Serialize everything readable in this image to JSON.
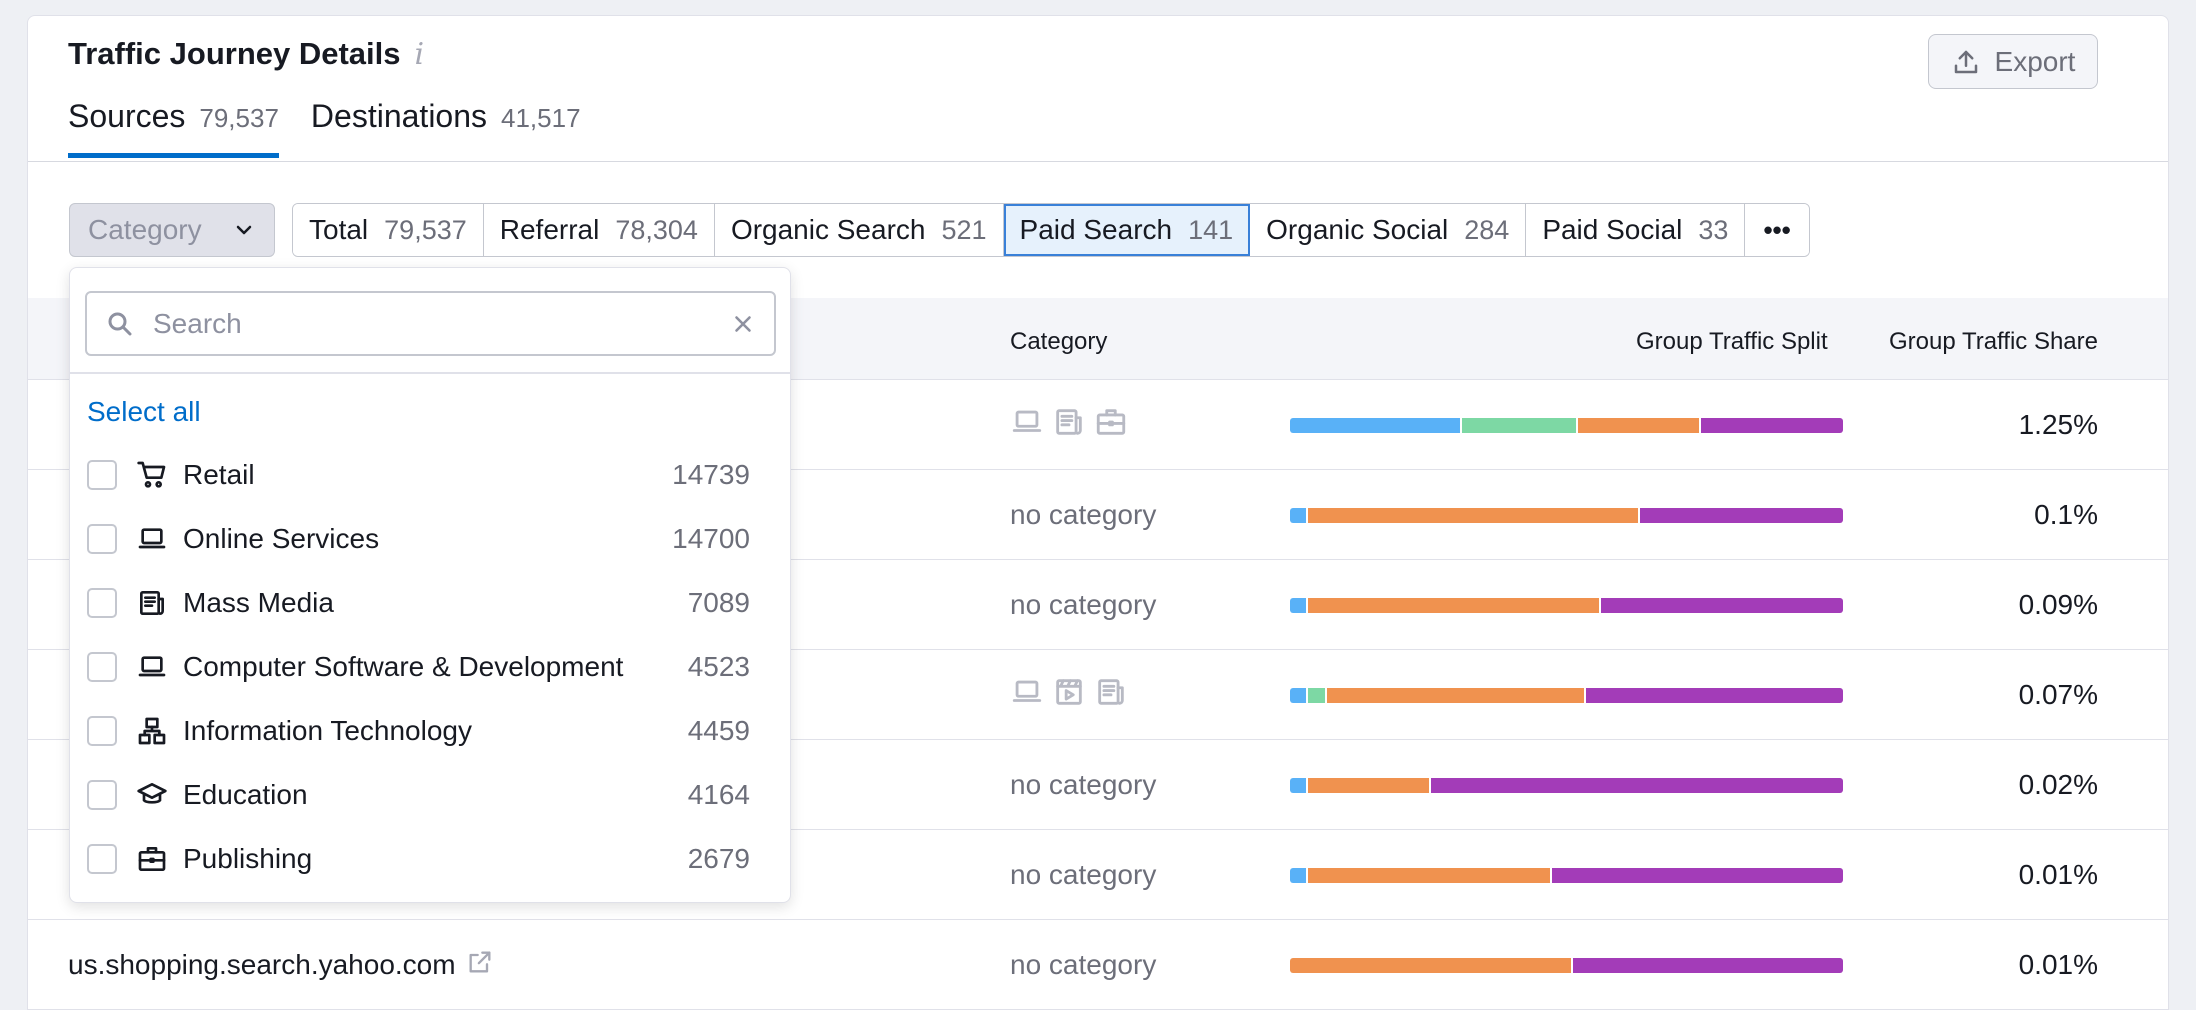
{
  "header": {
    "title": "Traffic Journey Details",
    "info_icon": "info-icon",
    "export_label": "Export"
  },
  "tabs": [
    {
      "label": "Sources",
      "count": "79,537",
      "active": true
    },
    {
      "label": "Destinations",
      "count": "41,517",
      "active": false
    }
  ],
  "filters": {
    "category_label": "Category",
    "buttons": [
      {
        "label": "Total",
        "count": "79,537"
      },
      {
        "label": "Referral",
        "count": "78,304"
      },
      {
        "label": "Organic Search",
        "count": "521"
      },
      {
        "label": "Paid Search",
        "count": "141",
        "active": true
      },
      {
        "label": "Organic Social",
        "count": "284"
      },
      {
        "label": "Paid Social",
        "count": "33"
      }
    ],
    "more_label": "•••"
  },
  "table": {
    "headers": {
      "category": "Category",
      "split": "Group Traffic Split",
      "share": "Group Traffic Share"
    },
    "colors": {
      "blue": "#59b1f7",
      "green": "#7dd8a4",
      "orange": "#f0924f",
      "purple": "#a33cb8"
    },
    "rows": [
      {
        "domain": "",
        "category": "",
        "icons": [
          "laptop-icon",
          "newspaper-icon",
          "briefcase-icon"
        ],
        "split": [
          31,
          21,
          22,
          26
        ],
        "share": "1.25%"
      },
      {
        "domain": "",
        "category": "no category",
        "icons": [],
        "split": [
          3,
          0,
          60,
          37
        ],
        "share": "0.1%"
      },
      {
        "domain": "",
        "category": "no category",
        "icons": [],
        "split": [
          3,
          0,
          53,
          44
        ],
        "share": "0.09%"
      },
      {
        "domain": "",
        "category": "",
        "icons": [
          "laptop-icon",
          "film-icon",
          "newspaper-icon"
        ],
        "split": [
          3,
          3,
          47,
          47
        ],
        "share": "0.07%"
      },
      {
        "domain": "",
        "category": "no category",
        "icons": [],
        "split": [
          3,
          0,
          22,
          75
        ],
        "share": "0.02%"
      },
      {
        "domain": "",
        "category": "no category",
        "icons": [],
        "split": [
          3,
          0,
          44,
          53
        ],
        "share": "0.01%"
      },
      {
        "domain": "us.shopping.search.yahoo.com",
        "category": "no category",
        "icons": [],
        "split": [
          0,
          0,
          51,
          49
        ],
        "share": "0.01%"
      }
    ]
  },
  "dropdown": {
    "search_placeholder": "Search",
    "select_all": "Select all",
    "options": [
      {
        "label": "Retail",
        "count": "14739",
        "icon": "cart-icon"
      },
      {
        "label": "Online Services",
        "count": "14700",
        "icon": "laptop-icon"
      },
      {
        "label": "Mass Media",
        "count": "7089",
        "icon": "newspaper-icon"
      },
      {
        "label": "Computer Software & Development",
        "count": "4523",
        "icon": "laptop-icon"
      },
      {
        "label": "Information Technology",
        "count": "4459",
        "icon": "network-icon"
      },
      {
        "label": "Education",
        "count": "4164",
        "icon": "graduation-cap-icon"
      },
      {
        "label": "Publishing",
        "count": "2679",
        "icon": "briefcase-icon"
      }
    ]
  }
}
